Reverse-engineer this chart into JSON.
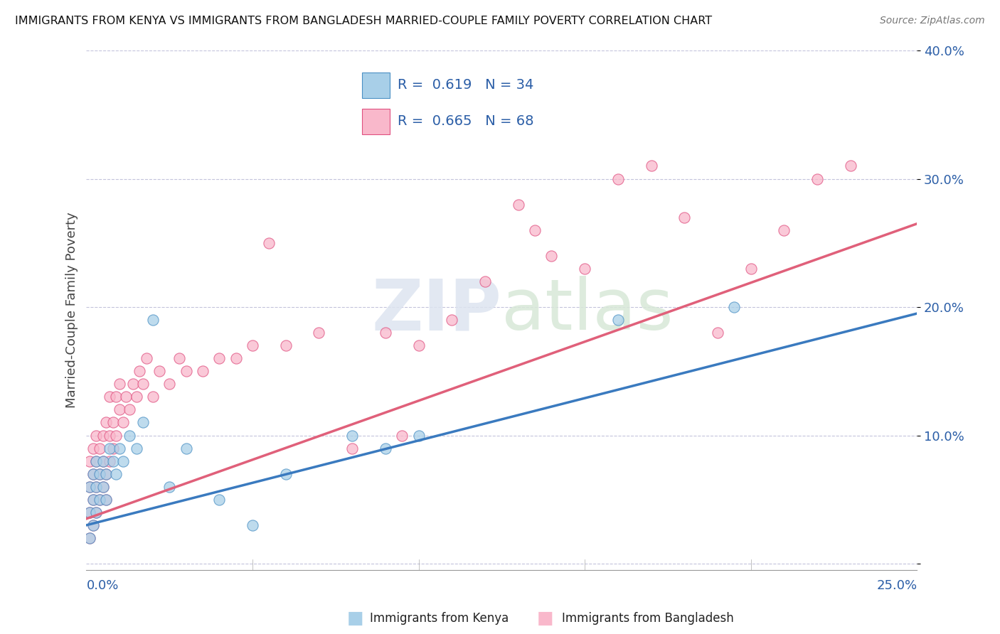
{
  "title": "IMMIGRANTS FROM KENYA VS IMMIGRANTS FROM BANGLADESH MARRIED-COUPLE FAMILY POVERTY CORRELATION CHART",
  "source": "Source: ZipAtlas.com",
  "ylabel": "Married-Couple Family Poverty",
  "kenya_R": 0.619,
  "kenya_N": 34,
  "bangladesh_R": 0.665,
  "bangladesh_N": 68,
  "kenya_color": "#a8cfe8",
  "kenya_edge_color": "#4a90c4",
  "bangladesh_color": "#f9b8cb",
  "bangladesh_edge_color": "#e05080",
  "kenya_line_color": "#3a7abf",
  "bangladesh_line_color": "#e0607a",
  "legend_label_kenya": "Immigrants from Kenya",
  "legend_label_bangladesh": "Immigrants from Bangladesh",
  "watermark_zip": "ZIP",
  "watermark_atlas": "atlas",
  "xlim": [
    0.0,
    0.25
  ],
  "ylim": [
    -0.005,
    0.4
  ],
  "kenya_scatter_x": [
    0.001,
    0.001,
    0.001,
    0.002,
    0.002,
    0.002,
    0.003,
    0.003,
    0.003,
    0.004,
    0.004,
    0.005,
    0.005,
    0.006,
    0.006,
    0.007,
    0.008,
    0.009,
    0.01,
    0.011,
    0.013,
    0.015,
    0.017,
    0.02,
    0.025,
    0.03,
    0.04,
    0.05,
    0.06,
    0.08,
    0.09,
    0.1,
    0.16,
    0.195
  ],
  "kenya_scatter_y": [
    0.02,
    0.04,
    0.06,
    0.03,
    0.05,
    0.07,
    0.04,
    0.06,
    0.08,
    0.05,
    0.07,
    0.06,
    0.08,
    0.05,
    0.07,
    0.09,
    0.08,
    0.07,
    0.09,
    0.08,
    0.1,
    0.09,
    0.11,
    0.19,
    0.06,
    0.09,
    0.05,
    0.03,
    0.07,
    0.1,
    0.09,
    0.1,
    0.19,
    0.2
  ],
  "bangladesh_scatter_x": [
    0.001,
    0.001,
    0.001,
    0.001,
    0.002,
    0.002,
    0.002,
    0.002,
    0.003,
    0.003,
    0.003,
    0.003,
    0.004,
    0.004,
    0.004,
    0.005,
    0.005,
    0.005,
    0.006,
    0.006,
    0.006,
    0.007,
    0.007,
    0.007,
    0.008,
    0.008,
    0.009,
    0.009,
    0.01,
    0.01,
    0.011,
    0.012,
    0.013,
    0.014,
    0.015,
    0.016,
    0.017,
    0.018,
    0.02,
    0.022,
    0.025,
    0.028,
    0.03,
    0.035,
    0.04,
    0.045,
    0.05,
    0.055,
    0.06,
    0.07,
    0.08,
    0.09,
    0.1,
    0.11,
    0.12,
    0.13,
    0.14,
    0.15,
    0.16,
    0.17,
    0.18,
    0.19,
    0.2,
    0.21,
    0.22,
    0.23,
    0.095,
    0.135
  ],
  "bangladesh_scatter_y": [
    0.02,
    0.04,
    0.06,
    0.08,
    0.03,
    0.05,
    0.07,
    0.09,
    0.04,
    0.06,
    0.08,
    0.1,
    0.05,
    0.07,
    0.09,
    0.06,
    0.08,
    0.1,
    0.05,
    0.07,
    0.11,
    0.08,
    0.1,
    0.13,
    0.09,
    0.11,
    0.1,
    0.13,
    0.12,
    0.14,
    0.11,
    0.13,
    0.12,
    0.14,
    0.13,
    0.15,
    0.14,
    0.16,
    0.13,
    0.15,
    0.14,
    0.16,
    0.15,
    0.15,
    0.16,
    0.16,
    0.17,
    0.25,
    0.17,
    0.18,
    0.09,
    0.18,
    0.17,
    0.19,
    0.22,
    0.28,
    0.24,
    0.23,
    0.3,
    0.31,
    0.27,
    0.18,
    0.23,
    0.26,
    0.3,
    0.31,
    0.1,
    0.26
  ]
}
